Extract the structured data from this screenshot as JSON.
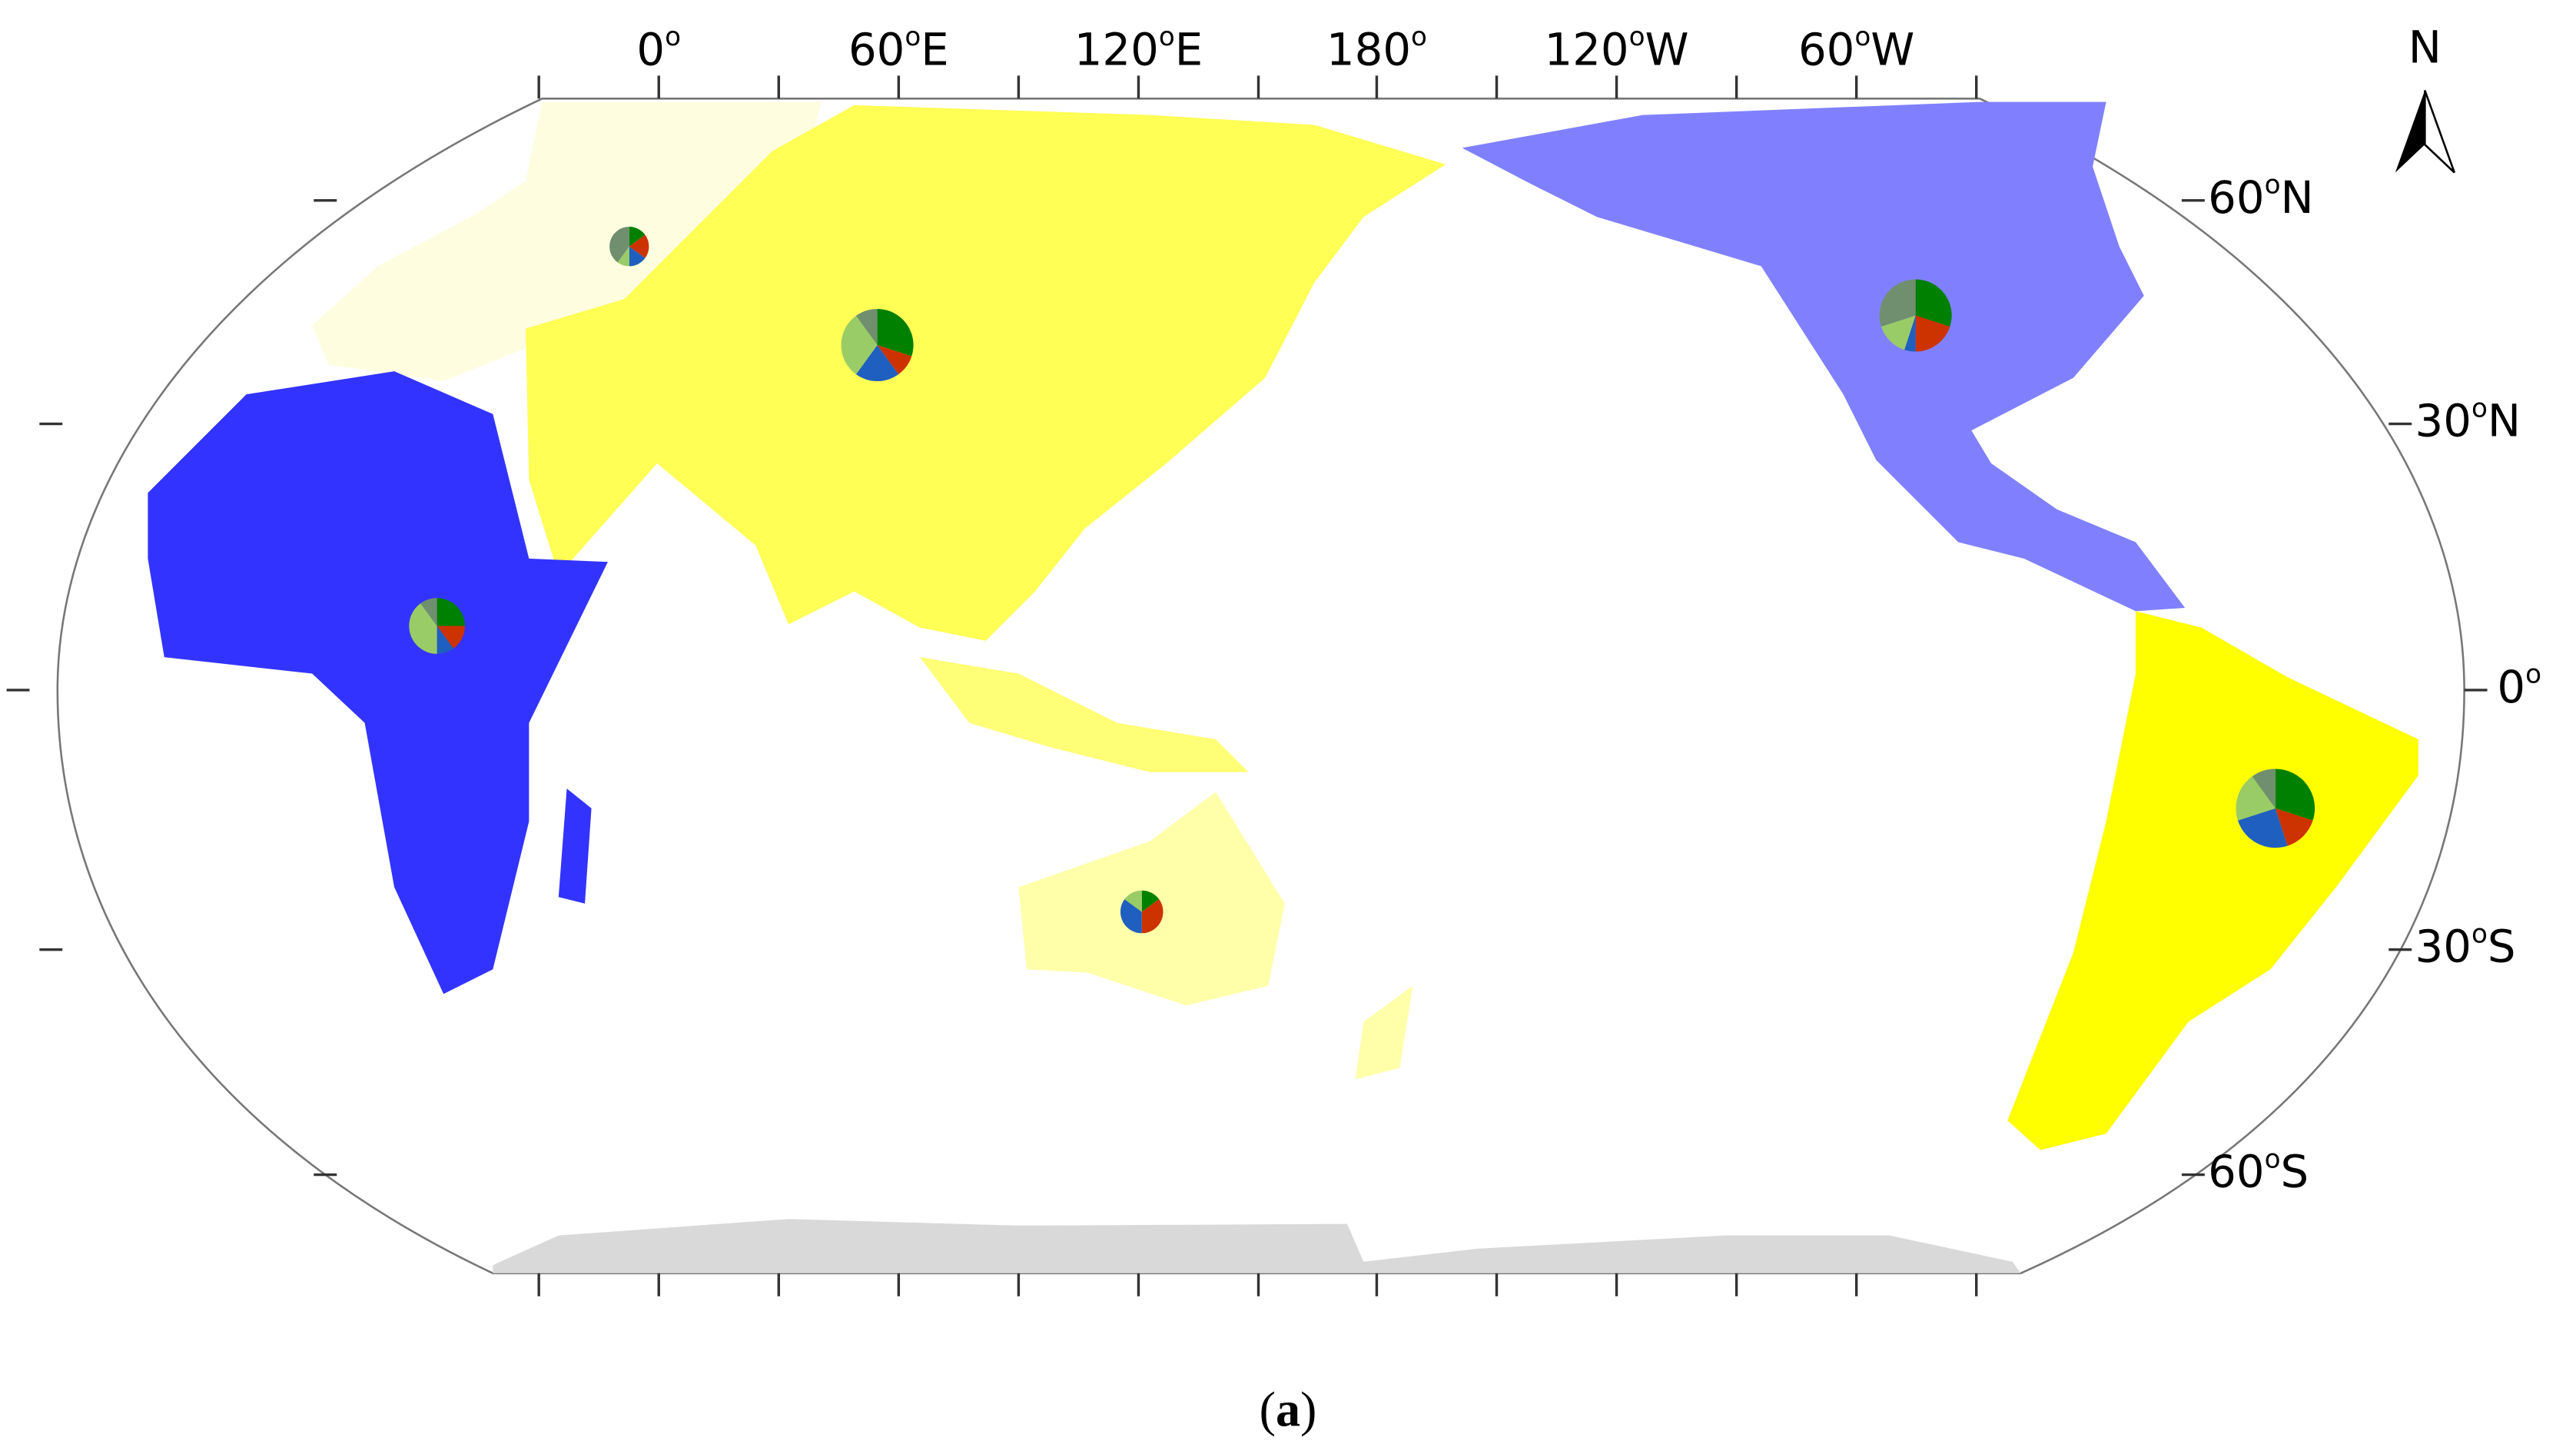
{
  "map": {
    "longitude_labels": [
      {
        "deg": "0",
        "sup": "o"
      },
      {
        "deg": "60",
        "sup": "o",
        "hemi": "E"
      },
      {
        "deg": "120",
        "sup": "o",
        "hemi": "E"
      },
      {
        "deg": "180",
        "sup": "o"
      },
      {
        "deg": "120",
        "sup": "o",
        "hemi": "W"
      },
      {
        "deg": "60",
        "sup": "o",
        "hemi": "W"
      }
    ],
    "latitude_labels": [
      {
        "deg": "60",
        "sup": "o",
        "hemi": "N"
      },
      {
        "deg": "30",
        "sup": "o",
        "hemi": "N"
      },
      {
        "deg": "0",
        "sup": "o"
      },
      {
        "deg": "30",
        "sup": "o",
        "hemi": "S"
      },
      {
        "deg": "60",
        "sup": "o",
        "hemi": "S"
      }
    ],
    "north_label": "N",
    "slice_colors": [
      "#008000",
      "#cc3300",
      "#1f5fbf",
      "#99cc66",
      "#6f8f6f"
    ],
    "pies": [
      {
        "values": [
          15,
          20,
          15,
          10,
          40
        ]
      },
      {
        "values": [
          30,
          10,
          20,
          30,
          10
        ]
      },
      {
        "values": [
          30,
          20,
          5,
          15,
          30
        ]
      },
      {
        "values": [
          25,
          15,
          10,
          40,
          10
        ]
      },
      {
        "values": [
          15,
          35,
          35,
          15,
          0
        ]
      },
      {
        "values": [
          30,
          15,
          25,
          20,
          10
        ]
      }
    ]
  },
  "caption": [
    "(",
    "a",
    ")"
  ]
}
